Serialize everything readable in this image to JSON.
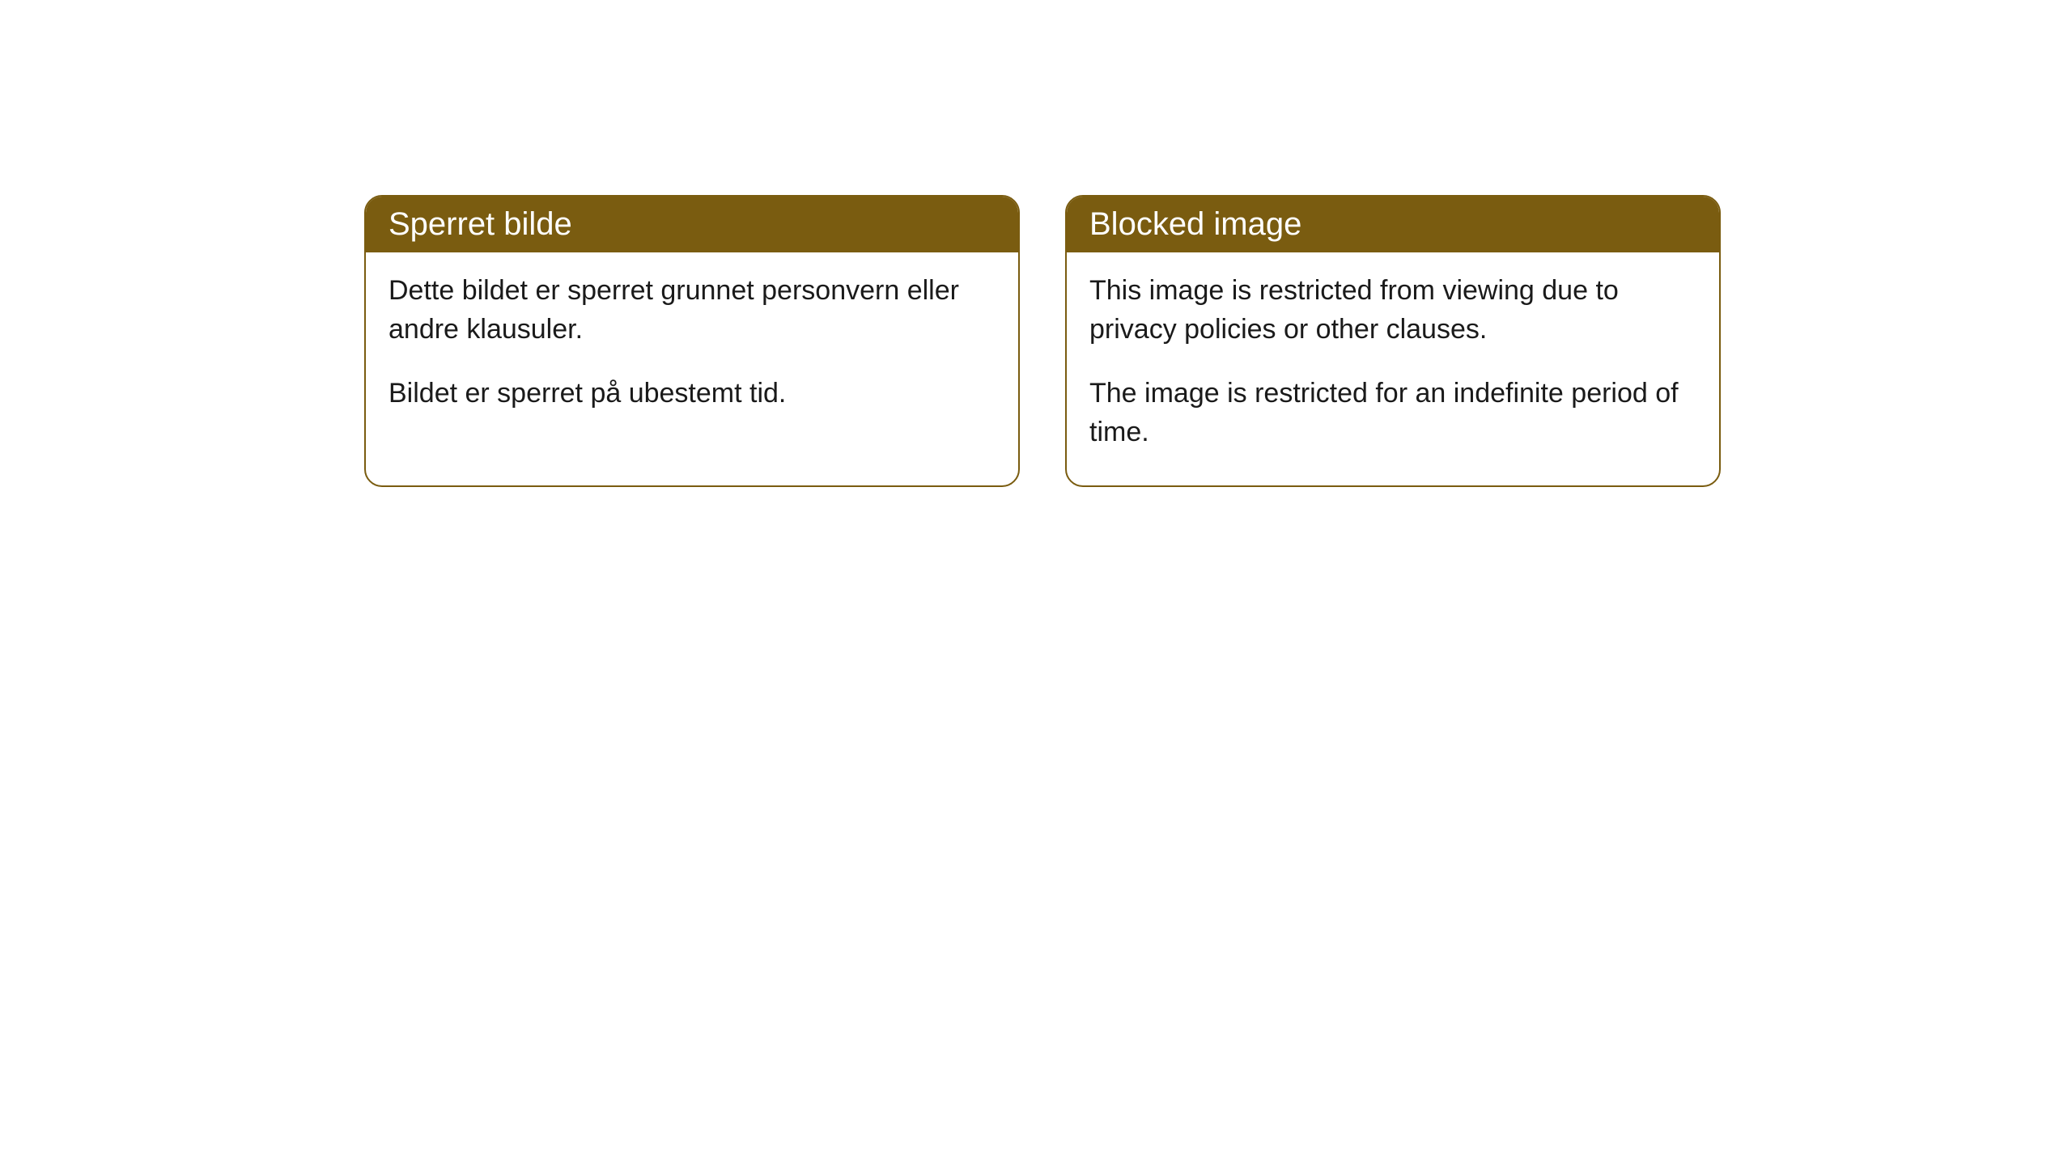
{
  "theme": {
    "header_bg_color": "#7a5c10",
    "header_text_color": "#ffffff",
    "border_color": "#7a5c10",
    "body_bg_color": "#ffffff",
    "body_text_color": "#1a1a1a",
    "border_radius": "22px",
    "header_fontsize": "40px",
    "body_fontsize": "34px"
  },
  "cards": {
    "left": {
      "title": "Sperret bilde",
      "paragraph1": "Dette bildet er sperret grunnet personvern eller andre klausuler.",
      "paragraph2": "Bildet er sperret på ubestemt tid."
    },
    "right": {
      "title": "Blocked image",
      "paragraph1": "This image is restricted from viewing due to privacy policies or other clauses.",
      "paragraph2": "The image is restricted for an indefinite period of time."
    }
  }
}
